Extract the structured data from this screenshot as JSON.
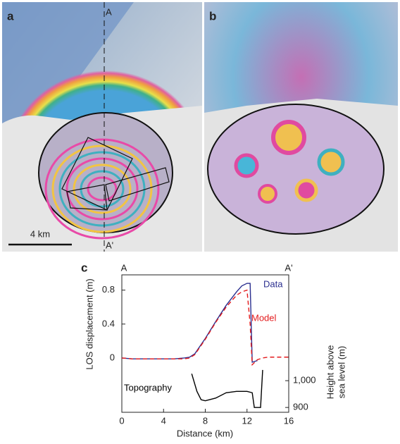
{
  "panels": [
    {
      "label": "a",
      "section_top": "A",
      "section_bottom": "A'",
      "scale_bar": "4 km"
    },
    {
      "label": "b"
    }
  ],
  "chart_data": {
    "type": "line",
    "label": "c",
    "section_start": "A",
    "section_end": "A'",
    "x_label": "Distance (km)",
    "y_label": "LOS displacement (m)",
    "y2_label": [
      "Height above",
      "sea level (m)"
    ],
    "xlim": [
      0,
      16
    ],
    "xticks": [
      0,
      4,
      8,
      12,
      16
    ],
    "ylim": [
      -0.64,
      0.98
    ],
    "yticks": [
      0,
      0.4,
      0.8
    ],
    "y2lim": [
      882,
      1395
    ],
    "y2ticks": [
      900,
      {
        "value": 1000,
        "label": "1,000"
      }
    ],
    "x": [
      0,
      1,
      2,
      3,
      4,
      5,
      6,
      6.5,
      7,
      8,
      9,
      10,
      11,
      11.5,
      12,
      12.3,
      12.5,
      13,
      13.5,
      14,
      15,
      16
    ],
    "series": [
      {
        "name": "Data",
        "color": "#2b2f8f",
        "dashed": false,
        "values": [
          0.0,
          -0.01,
          -0.01,
          -0.01,
          -0.01,
          -0.01,
          0.0,
          0.01,
          0.05,
          0.23,
          0.43,
          0.62,
          0.78,
          0.85,
          0.88,
          0.88,
          -0.05,
          -0.03,
          null,
          null,
          null,
          null
        ]
      },
      {
        "name": "Model",
        "color": "#e31a1c",
        "dashed": true,
        "values": [
          0.0,
          -0.01,
          -0.01,
          -0.01,
          -0.01,
          -0.01,
          -0.01,
          0.0,
          0.04,
          0.22,
          0.42,
          0.6,
          0.74,
          0.78,
          0.8,
          0.4,
          -0.08,
          -0.02,
          0.0,
          0.01,
          0.01,
          0.01
        ]
      }
    ],
    "topography": {
      "name": "Topography",
      "color": "#000000",
      "axis": "y2",
      "x": [
        6.7,
        7.2,
        7.6,
        8,
        9,
        10,
        11,
        12,
        12.5,
        12.7,
        13.3,
        13.5
      ],
      "values": [
        1026,
        960,
        929,
        925,
        935,
        955,
        960,
        960,
        955,
        900,
        900,
        1040
      ]
    }
  }
}
